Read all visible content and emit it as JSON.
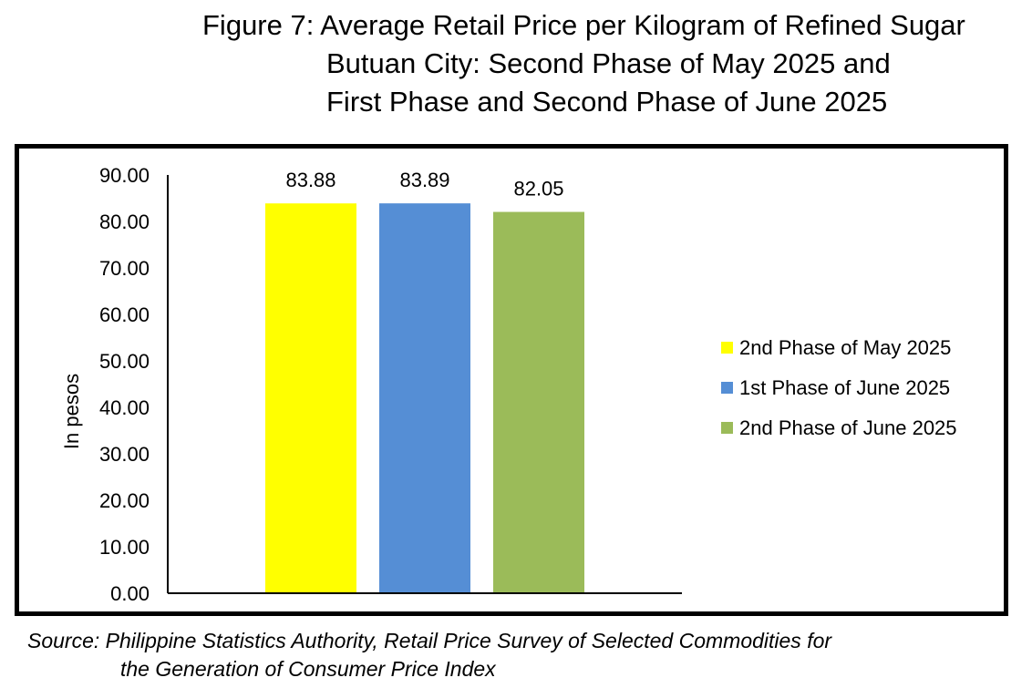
{
  "title": {
    "line1": "Figure 7: Average Retail Price per Kilogram of Refined Sugar",
    "line2": "Butuan City: Second Phase of May 2025 and",
    "line3": "First Phase and Second Phase of June 2025"
  },
  "source": {
    "line1": "Source: Philippine Statistics Authority, Retail Price Survey of Selected Commodities for",
    "line2": "the Generation of Consumer Price Index"
  },
  "chart_data": {
    "type": "bar",
    "categories": [
      ""
    ],
    "series": [
      {
        "name": "2nd Phase of May 2025",
        "values": [
          83.88
        ],
        "label": "83.88",
        "color": "#FFFF00"
      },
      {
        "name": "1st Phase of June 2025",
        "values": [
          83.89
        ],
        "label": "83.89",
        "color": "#558ED5"
      },
      {
        "name": "2nd Phase of June 2025",
        "values": [
          82.05
        ],
        "label": "82.05",
        "color": "#9BBB59"
      }
    ],
    "ylabel": "In pesos",
    "xlabel": "",
    "ylim": [
      0,
      90
    ],
    "yticks": [
      "0.00",
      "10.00",
      "20.00",
      "30.00",
      "40.00",
      "50.00",
      "60.00",
      "70.00",
      "80.00",
      "90.00"
    ],
    "grid": false,
    "legend": "right"
  }
}
